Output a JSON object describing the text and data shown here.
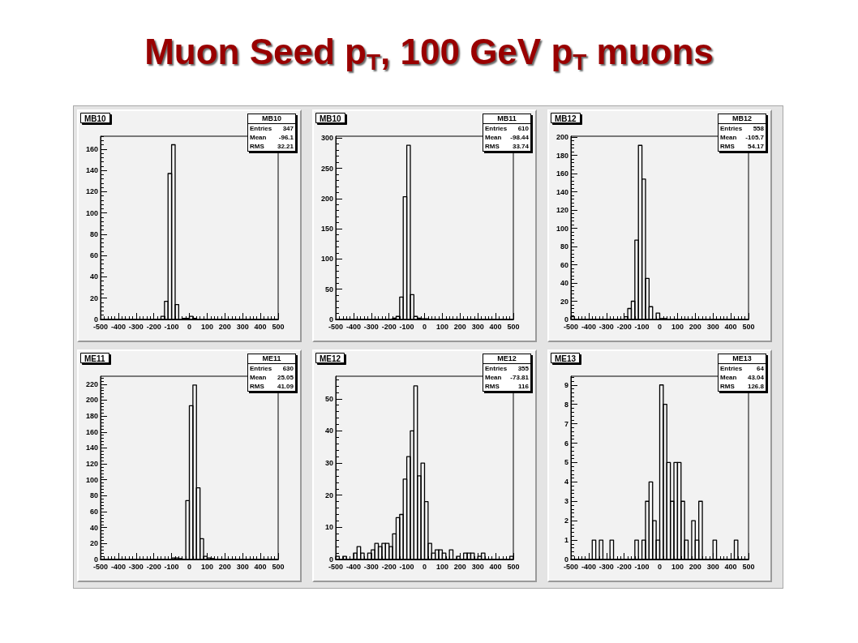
{
  "chart_data": [
    {
      "type": "other",
      "title": "Muon Seed p$_{T}$, 100 GeV p$_{T}$ muons"
    },
    {
      "type": "histogram",
      "title": "MB10",
      "color": "#000000",
      "annotations": [
        "MB10",
        "Entries 347",
        "Mean -96.1",
        "RMS 32.21"
      ],
      "bins": [
        -500,
        -480,
        -460,
        -440,
        -420,
        -400,
        -380,
        -360,
        -340,
        -320,
        -300,
        -280,
        -260,
        -240,
        -220,
        -200,
        -180,
        -160,
        -140,
        -120,
        -100,
        -80,
        -60,
        -40,
        -20,
        0,
        20,
        40,
        60,
        80,
        100,
        120,
        140,
        160,
        180,
        200,
        220,
        240,
        260,
        280,
        300,
        320,
        340,
        360,
        380,
        400,
        420,
        440,
        460,
        480,
        500
      ],
      "values": [
        0,
        0,
        0,
        0,
        0,
        0,
        0,
        0,
        0,
        0,
        0,
        0,
        0,
        0,
        0,
        0,
        0,
        3,
        17,
        137,
        164,
        14,
        0,
        1,
        1,
        3,
        1,
        0,
        0,
        0,
        0,
        0,
        0,
        0,
        0,
        0,
        0,
        0,
        0,
        0,
        0,
        0,
        0,
        0,
        0,
        0,
        0,
        0,
        0,
        0
      ],
      "xlim": [
        -500,
        500
      ],
      "xticks": [
        -500,
        -400,
        -300,
        -200,
        -100,
        0,
        100,
        200,
        300,
        400,
        500
      ],
      "ylim": [
        0,
        172
      ],
      "yticks": [
        0,
        20,
        40,
        60,
        80,
        100,
        120,
        140,
        160
      ]
    },
    {
      "type": "histogram",
      "title": "MB10",
      "color": "#000000",
      "annotations": [
        "MB11",
        "Entries 610",
        "Mean -98.44",
        "RMS 33.74"
      ],
      "bins": [
        -500,
        -480,
        -460,
        -440,
        -420,
        -400,
        -380,
        -360,
        -340,
        -320,
        -300,
        -280,
        -260,
        -240,
        -220,
        -200,
        -180,
        -160,
        -140,
        -120,
        -100,
        -80,
        -60,
        -40,
        -20,
        0,
        20,
        40,
        60,
        80,
        100,
        120,
        140,
        160,
        180,
        200,
        220,
        240,
        260,
        280,
        300,
        320,
        340,
        360,
        380,
        400,
        420,
        440,
        460,
        480,
        500
      ],
      "values": [
        0,
        0,
        0,
        0,
        0,
        0,
        0,
        0,
        0,
        0,
        0,
        0,
        0,
        0,
        0,
        0,
        2,
        5,
        37,
        203,
        288,
        41,
        5,
        2,
        1,
        1,
        0,
        0,
        0,
        0,
        0,
        0,
        0,
        0,
        0,
        0,
        0,
        0,
        0,
        0,
        0,
        0,
        0,
        0,
        0,
        0,
        0,
        0,
        0,
        0
      ],
      "xlim": [
        -500,
        500
      ],
      "xticks": [
        -500,
        -400,
        -300,
        -200,
        -100,
        0,
        100,
        200,
        300,
        400,
        500
      ],
      "ylim": [
        0,
        303
      ],
      "yticks": [
        0,
        50,
        100,
        150,
        200,
        250,
        300
      ]
    },
    {
      "type": "histogram",
      "title": "MB12",
      "color": "#000000",
      "annotations": [
        "MB12",
        "Entries 558",
        "Mean -105.7",
        "RMS 54.17"
      ],
      "bins": [
        -500,
        -480,
        -460,
        -440,
        -420,
        -400,
        -380,
        -360,
        -340,
        -320,
        -300,
        -280,
        -260,
        -240,
        -220,
        -200,
        -180,
        -160,
        -140,
        -120,
        -100,
        -80,
        -60,
        -40,
        -20,
        0,
        20,
        40,
        60,
        80,
        100,
        120,
        140,
        160,
        180,
        200,
        220,
        240,
        260,
        280,
        300,
        320,
        340,
        360,
        380,
        400,
        420,
        440,
        460,
        480,
        500
      ],
      "values": [
        3,
        0,
        0,
        0,
        0,
        0,
        0,
        0,
        0,
        0,
        0,
        0,
        0,
        0,
        0,
        3,
        12,
        20,
        87,
        191,
        154,
        45,
        14,
        0,
        7,
        1,
        1,
        0,
        0,
        0,
        0,
        0,
        0,
        0,
        0,
        0,
        0,
        0,
        0,
        0,
        0,
        0,
        0,
        0,
        0,
        0,
        0,
        0,
        0,
        0
      ],
      "xlim": [
        -500,
        500
      ],
      "xticks": [
        -500,
        -400,
        -300,
        -200,
        -100,
        0,
        100,
        200,
        300,
        400,
        500
      ],
      "ylim": [
        0,
        201
      ],
      "yticks": [
        0,
        20,
        40,
        60,
        80,
        100,
        120,
        140,
        160,
        180,
        200
      ]
    },
    {
      "type": "histogram",
      "title": "ME11",
      "color": "#000000",
      "annotations": [
        "ME11",
        "Entries 630",
        "Mean 25.05",
        "RMS 41.09"
      ],
      "bins": [
        -500,
        -480,
        -460,
        -440,
        -420,
        -400,
        -380,
        -360,
        -340,
        -320,
        -300,
        -280,
        -260,
        -240,
        -220,
        -200,
        -180,
        -160,
        -140,
        -120,
        -100,
        -80,
        -60,
        -40,
        -20,
        0,
        20,
        40,
        60,
        80,
        100,
        120,
        140,
        160,
        180,
        200,
        220,
        240,
        260,
        280,
        300,
        320,
        340,
        360,
        380,
        400,
        420,
        440,
        460,
        480,
        500
      ],
      "values": [
        0,
        0,
        0,
        0,
        0,
        0,
        0,
        0,
        0,
        0,
        0,
        0,
        0,
        0,
        0,
        0,
        0,
        0,
        0,
        0,
        2,
        2,
        1,
        0,
        74,
        193,
        219,
        90,
        26,
        4,
        2,
        1,
        0,
        0,
        0,
        0,
        0,
        0,
        0,
        0,
        0,
        0,
        0,
        0,
        0,
        0,
        0,
        0,
        0,
        0
      ],
      "xlim": [
        -500,
        500
      ],
      "xticks": [
        -500,
        -400,
        -300,
        -200,
        -100,
        0,
        100,
        200,
        300,
        400,
        500
      ],
      "ylim": [
        0,
        230
      ],
      "yticks": [
        0,
        20,
        40,
        60,
        80,
        100,
        120,
        140,
        160,
        180,
        200,
        220
      ]
    },
    {
      "type": "histogram",
      "title": "ME12",
      "color": "#000000",
      "annotations": [
        "ME12",
        "Entries 355",
        "Mean -73.81",
        "RMS 116"
      ],
      "bins": [
        -500,
        -480,
        -460,
        -440,
        -420,
        -400,
        -380,
        -360,
        -340,
        -320,
        -300,
        -280,
        -260,
        -240,
        -220,
        -200,
        -180,
        -160,
        -140,
        -120,
        -100,
        -80,
        -60,
        -40,
        -20,
        0,
        20,
        40,
        60,
        80,
        100,
        120,
        140,
        160,
        180,
        200,
        220,
        240,
        260,
        280,
        300,
        320,
        340,
        360,
        380,
        400,
        420,
        440,
        460,
        480,
        500
      ],
      "values": [
        1,
        0,
        1,
        0,
        0,
        2,
        4,
        2,
        0,
        2,
        3,
        5,
        4,
        5,
        5,
        4,
        8,
        13,
        14,
        25,
        32,
        40,
        54,
        26,
        30,
        18,
        5,
        2,
        3,
        3,
        2,
        0,
        3,
        0,
        1,
        0,
        2,
        2,
        2,
        0,
        1,
        2,
        0,
        0,
        0,
        0,
        0,
        0,
        0,
        1
      ],
      "xlim": [
        -500,
        500
      ],
      "xticks": [
        -500,
        -400,
        -300,
        -200,
        -100,
        0,
        100,
        200,
        300,
        400,
        500
      ],
      "ylim": [
        0,
        57
      ],
      "yticks": [
        0,
        10,
        20,
        30,
        40,
        50
      ]
    },
    {
      "type": "histogram",
      "title": "ME13",
      "color": "#000000",
      "annotations": [
        "ME13",
        "Entries 64",
        "Mean 43.04",
        "RMS 126.8"
      ],
      "bins": [
        -500,
        -480,
        -460,
        -440,
        -420,
        -400,
        -380,
        -360,
        -340,
        -320,
        -300,
        -280,
        -260,
        -240,
        -220,
        -200,
        -180,
        -160,
        -140,
        -120,
        -100,
        -80,
        -60,
        -40,
        -20,
        0,
        20,
        40,
        60,
        80,
        100,
        120,
        140,
        160,
        180,
        200,
        220,
        240,
        260,
        280,
        300,
        320,
        340,
        360,
        380,
        400,
        420,
        440,
        460,
        480,
        500
      ],
      "values": [
        0,
        0,
        0,
        0,
        0,
        0,
        1,
        0,
        1,
        0,
        0,
        1,
        0,
        0,
        0,
        0,
        0,
        0,
        1,
        0,
        1,
        3,
        4,
        2,
        1,
        9,
        8,
        5,
        3,
        5,
        5,
        3,
        1,
        0,
        2,
        1,
        3,
        0,
        0,
        0,
        1,
        0,
        0,
        0,
        0,
        0,
        1,
        0,
        0,
        0
      ],
      "xlim": [
        -500,
        500
      ],
      "xticks": [
        -500,
        -400,
        -300,
        -200,
        -100,
        0,
        100,
        200,
        300,
        400,
        500
      ],
      "ylim": [
        0,
        9.45
      ],
      "yticks": [
        0,
        1,
        2,
        3,
        4,
        5,
        6,
        7,
        8,
        9
      ]
    }
  ]
}
